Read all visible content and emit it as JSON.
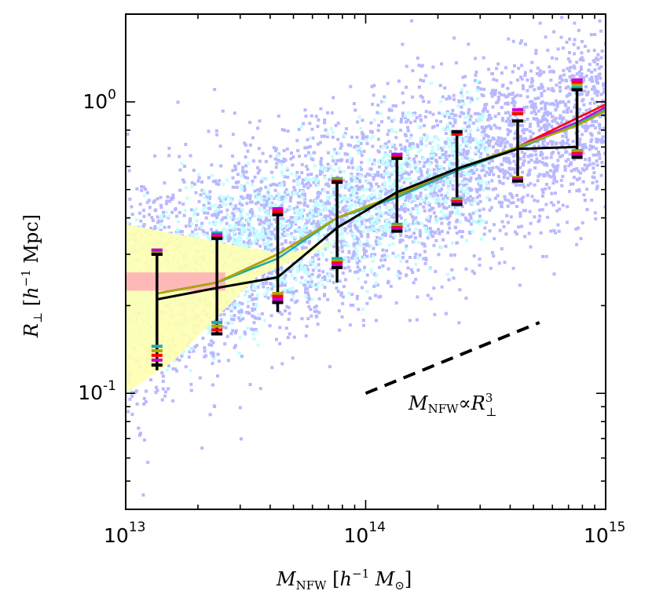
{
  "chart_data": {
    "type": "scatter",
    "x_scale": "log",
    "y_scale": "log",
    "xlim": [
      10000000000000.0,
      1000000000000000.0
    ],
    "ylim": [
      0.04,
      2.0
    ],
    "xlabel": {
      "main": "M",
      "sub": "NFW",
      "bracket_open": " [",
      "h": "h",
      "sup": "−1",
      "unit": " M",
      "unit_sub": "⊙",
      "bracket_close": "]"
    },
    "ylabel": {
      "main": "R",
      "sub": "⊥",
      "bracket_open": " [",
      "h": "h",
      "sup": "−1",
      "unit": " Mpc",
      "bracket_close": "]"
    },
    "x_ticks": [
      {
        "value": 10000000000000.0,
        "base": "10",
        "exp": "13"
      },
      {
        "value": 100000000000000.0,
        "base": "10",
        "exp": "14"
      },
      {
        "value": 1000000000000000.0,
        "base": "10",
        "exp": "15"
      }
    ],
    "y_ticks": [
      {
        "value": 0.1,
        "base": "10",
        "exp": "-1"
      },
      {
        "value": 1.0,
        "base": "10",
        "exp": "0"
      }
    ],
    "annotation": {
      "text_main": "M",
      "text_sub": "NFW",
      "text_prop": "∝",
      "text_r": "R",
      "text_r_sup": "3",
      "text_r_sub": "⊥"
    },
    "reference_line": {
      "x": [
        100000000000000.0,
        530000000000000.0
      ],
      "y": [
        0.1,
        0.175
      ],
      "style": "dashed",
      "color": "#000000"
    },
    "density_colors": [
      "#b8b8ff",
      "#c0ffff",
      "#ffffb0",
      "#ffb0b8"
    ],
    "median_curves": [
      {
        "color": "#ff0000",
        "x": [
          13500000000000.0,
          24000000000000.0,
          43000000000000.0,
          76000000000000.0,
          135000000000000.0,
          240000000000000.0,
          430000000000000.0,
          760000000000000.0,
          1000000000000000.0
        ],
        "y": [
          0.22,
          0.24,
          0.3,
          0.4,
          0.48,
          0.58,
          0.7,
          0.88,
          0.98
        ]
      },
      {
        "color": "#cc00cc",
        "x": [
          13500000000000.0,
          24000000000000.0,
          43000000000000.0,
          76000000000000.0,
          135000000000000.0,
          240000000000000.0,
          430000000000000.0,
          760000000000000.0,
          1000000000000000.0
        ],
        "y": [
          0.22,
          0.24,
          0.3,
          0.4,
          0.47,
          0.58,
          0.7,
          0.85,
          0.96
        ]
      },
      {
        "color": "#22aaaa",
        "x": [
          13500000000000.0,
          24000000000000.0,
          43000000000000.0,
          76000000000000.0,
          135000000000000.0,
          240000000000000.0,
          430000000000000.0,
          760000000000000.0,
          1000000000000000.0
        ],
        "y": [
          0.22,
          0.24,
          0.29,
          0.4,
          0.47,
          0.58,
          0.69,
          0.84,
          0.94
        ]
      },
      {
        "color": "#aaaa00",
        "x": [
          13500000000000.0,
          24000000000000.0,
          43000000000000.0,
          76000000000000.0,
          135000000000000.0,
          240000000000000.0,
          430000000000000.0,
          760000000000000.0,
          1000000000000000.0
        ],
        "y": [
          0.22,
          0.24,
          0.3,
          0.4,
          0.48,
          0.59,
          0.7,
          0.83,
          0.93
        ]
      },
      {
        "color": "#000000",
        "x": [
          13500000000000.0,
          24000000000000.0,
          43000000000000.0,
          76000000000000.0,
          135000000000000.0,
          240000000000000.0,
          430000000000000.0,
          760000000000000.0
        ],
        "y": [
          0.21,
          0.23,
          0.25,
          0.37,
          0.49,
          0.59,
          0.69,
          0.7
        ]
      }
    ],
    "error_bars": {
      "x": [
        13500000000000.0,
        24000000000000.0,
        43000000000000.0,
        76000000000000.0,
        135000000000000.0,
        240000000000000.0,
        430000000000000.0,
        760000000000000.0
      ],
      "black_low": [
        0.12,
        0.16,
        0.19,
        0.24,
        0.36,
        0.44,
        0.55,
        0.68
      ],
      "black_high": [
        0.3,
        0.35,
        0.41,
        0.53,
        0.64,
        0.79,
        0.86,
        1.1
      ],
      "cap_colors": [
        "#22aaaa",
        "#aaaa00",
        "#ff0000",
        "#cc00cc",
        "#000000"
      ],
      "cap_low": [
        [
          0.145,
          0.175,
          0.22,
          0.29,
          0.38,
          0.465,
          0.55,
          0.68
        ],
        [
          0.14,
          0.17,
          0.22,
          0.285,
          0.375,
          0.46,
          0.55,
          0.675
        ],
        [
          0.135,
          0.165,
          0.215,
          0.28,
          0.37,
          0.455,
          0.545,
          0.665
        ],
        [
          0.13,
          0.16,
          0.21,
          0.275,
          0.365,
          0.45,
          0.54,
          0.655
        ],
        [
          0.125,
          0.16,
          0.205,
          0.27,
          0.36,
          0.445,
          0.535,
          0.645
        ]
      ],
      "cap_high": [
        [
          0.31,
          0.355,
          0.43,
          0.545,
          0.66,
          0.79,
          0.93,
          1.12
        ],
        [
          0.305,
          0.35,
          0.425,
          0.54,
          0.655,
          0.78,
          0.92,
          1.15
        ],
        [
          0.3,
          0.345,
          0.42,
          0.535,
          0.65,
          0.775,
          0.91,
          1.17
        ],
        [
          0.31,
          0.35,
          0.43,
          0.53,
          0.66,
          0.79,
          0.94,
          1.19
        ],
        [
          0.3,
          0.34,
          0.41,
          0.53,
          0.64,
          0.79,
          0.86,
          1.1
        ]
      ]
    },
    "grid": false
  }
}
